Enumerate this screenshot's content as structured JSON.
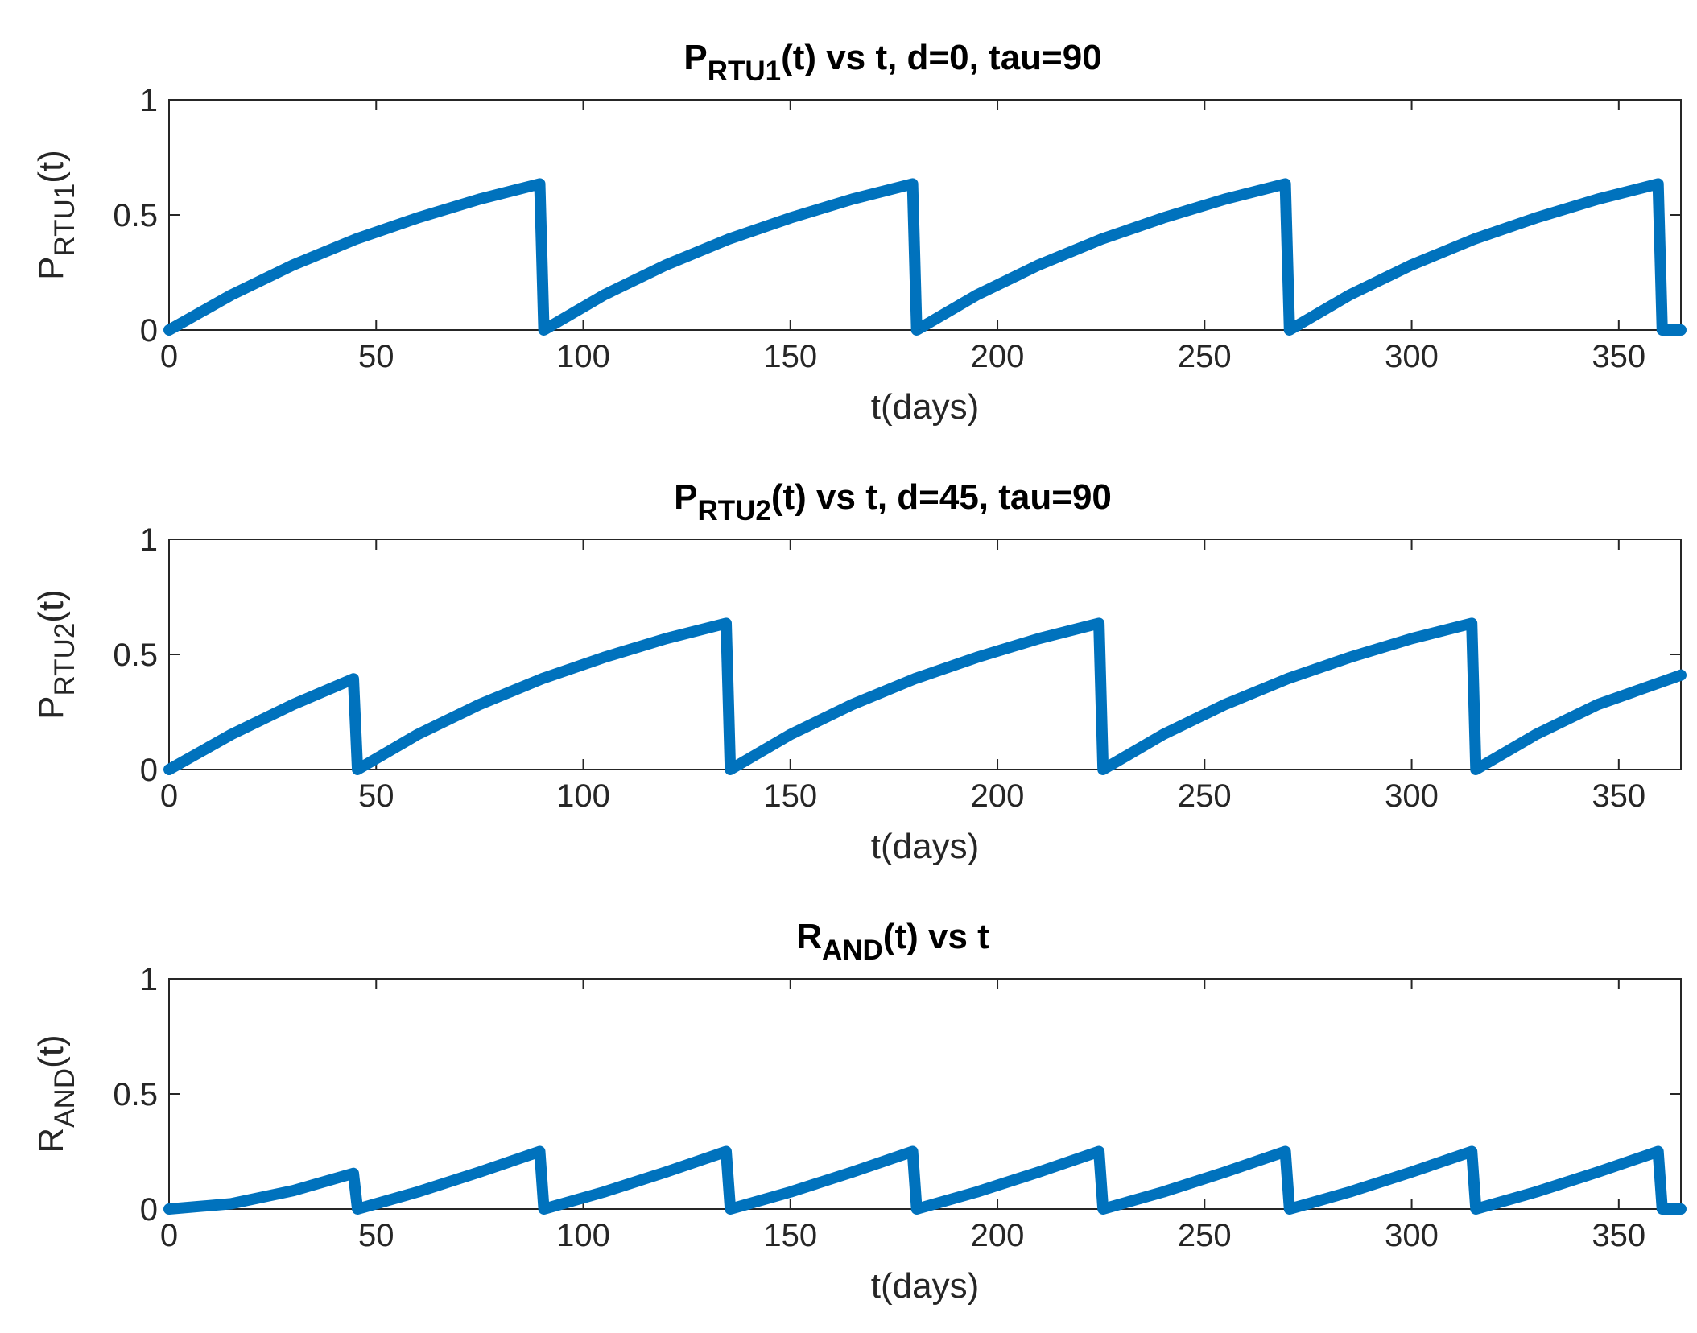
{
  "chart_data": [
    {
      "type": "line",
      "title_main": "P",
      "title_sub": "RTU1",
      "title_rest": "(t) vs t, d=0, tau=90",
      "xlabel": "t(days)",
      "ylabel_main": "P",
      "ylabel_sub": "RTU1",
      "ylabel_rest": "(t)",
      "xlim": [
        0,
        365
      ],
      "ylim": [
        0,
        1
      ],
      "xticks": [
        0,
        50,
        100,
        150,
        200,
        250,
        300,
        350
      ],
      "yticks": [
        0,
        0.5,
        1
      ],
      "xtick_labels": [
        "0",
        "50",
        "100",
        "150",
        "200",
        "250",
        "300",
        "350"
      ],
      "ytick_labels": [
        "0",
        "0.5",
        "1"
      ],
      "grid": false,
      "series": [
        {
          "color": "#0072BD",
          "x": [
            0,
            15,
            30,
            45,
            60,
            75,
            89.5,
            90.5,
            105,
            120,
            135,
            150,
            165,
            179.5,
            180.5,
            195,
            210,
            225,
            240,
            255,
            269.5,
            270.5,
            285,
            300,
            315,
            330,
            345,
            359.5,
            360.5,
            365
          ],
          "y": [
            0,
            0.152,
            0.283,
            0.394,
            0.487,
            0.569,
            0.635,
            0,
            0.152,
            0.283,
            0.394,
            0.487,
            0.569,
            0.635,
            0,
            0.152,
            0.283,
            0.394,
            0.487,
            0.569,
            0.635,
            0,
            0.152,
            0.283,
            0.394,
            0.487,
            0.569,
            0.635,
            0,
            0
          ]
        }
      ]
    },
    {
      "type": "line",
      "title_main": "P",
      "title_sub": "RTU2",
      "title_rest": "(t) vs t, d=45, tau=90",
      "xlabel": "t(days)",
      "ylabel_main": "P",
      "ylabel_sub": "RTU2",
      "ylabel_rest": "(t)",
      "xlim": [
        0,
        365
      ],
      "ylim": [
        0,
        1
      ],
      "xticks": [
        0,
        50,
        100,
        150,
        200,
        250,
        300,
        350
      ],
      "yticks": [
        0,
        0.5,
        1
      ],
      "xtick_labels": [
        "0",
        "50",
        "100",
        "150",
        "200",
        "250",
        "300",
        "350"
      ],
      "ytick_labels": [
        "0",
        "0.5",
        "1"
      ],
      "grid": false,
      "series": [
        {
          "color": "#0072BD",
          "x": [
            0,
            15,
            30,
            44.5,
            45.5,
            60,
            75,
            90,
            105,
            120,
            134.5,
            135.5,
            150,
            165,
            180,
            195,
            210,
            224.5,
            225.5,
            240,
            255,
            270,
            285,
            300,
            314.5,
            315.5,
            330,
            345,
            365
          ],
          "y": [
            0,
            0.152,
            0.283,
            0.394,
            0,
            0.152,
            0.283,
            0.394,
            0.487,
            0.569,
            0.635,
            0,
            0.152,
            0.283,
            0.394,
            0.487,
            0.569,
            0.635,
            0,
            0.152,
            0.283,
            0.394,
            0.487,
            0.569,
            0.635,
            0,
            0.152,
            0.283,
            0.41
          ]
        }
      ]
    },
    {
      "type": "line",
      "title_main": "R",
      "title_sub": "AND",
      "title_rest": "(t) vs t",
      "xlabel": "t(days)",
      "ylabel_main": "R",
      "ylabel_sub": "AND",
      "ylabel_rest": "(t)",
      "xlim": [
        0,
        365
      ],
      "ylim": [
        0,
        1
      ],
      "xticks": [
        0,
        50,
        100,
        150,
        200,
        250,
        300,
        350
      ],
      "yticks": [
        0,
        0.5,
        1
      ],
      "xtick_labels": [
        "0",
        "50",
        "100",
        "150",
        "200",
        "250",
        "300",
        "350"
      ],
      "ytick_labels": [
        "0",
        "0.5",
        "1"
      ],
      "grid": false,
      "series": [
        {
          "color": "#0072BD",
          "x": [
            0,
            15,
            30,
            44.5,
            45.5,
            60,
            75,
            89.5,
            90.5,
            105,
            120,
            134.5,
            135.5,
            150,
            165,
            179.5,
            180.5,
            195,
            210,
            224.5,
            225.5,
            240,
            255,
            269.5,
            270.5,
            285,
            300,
            314.5,
            315.5,
            330,
            345,
            359.5,
            360.5,
            365
          ],
          "y": [
            0,
            0.023,
            0.08,
            0.155,
            0,
            0.074,
            0.161,
            0.25,
            0,
            0.074,
            0.161,
            0.25,
            0,
            0.074,
            0.161,
            0.25,
            0,
            0.074,
            0.161,
            0.25,
            0,
            0.074,
            0.161,
            0.25,
            0,
            0.074,
            0.161,
            0.25,
            0,
            0.074,
            0.161,
            0.25,
            0,
            0
          ]
        }
      ]
    }
  ]
}
